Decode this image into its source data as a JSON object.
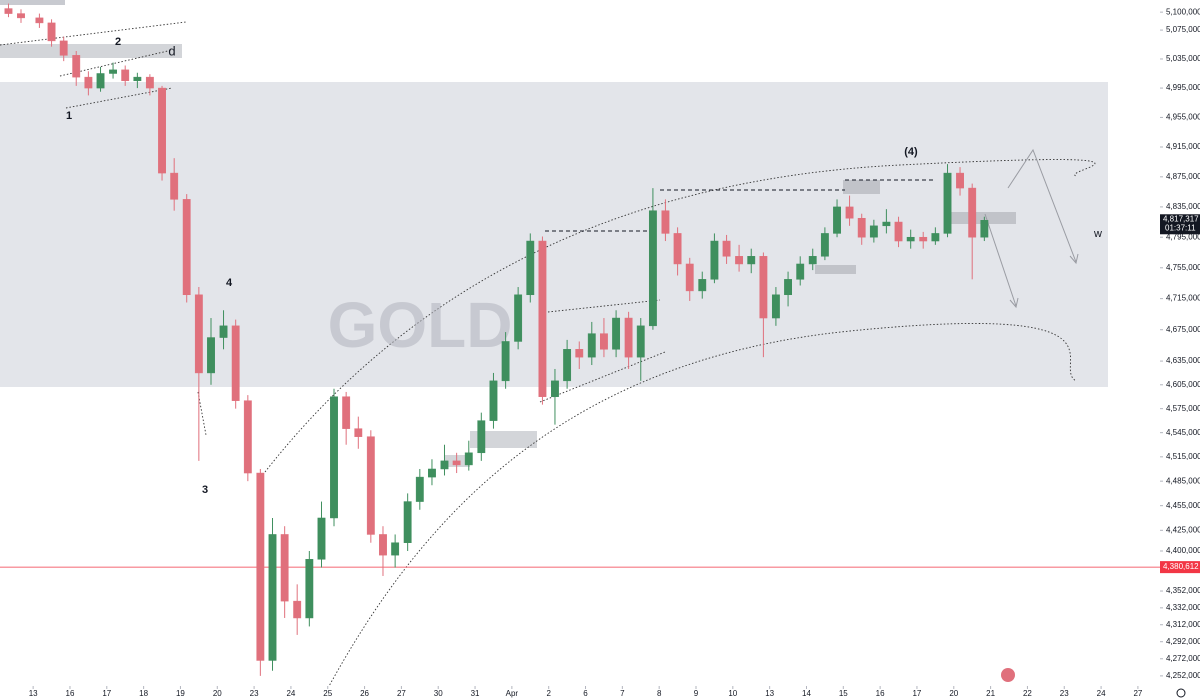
{
  "chart_data": {
    "type": "candlestick",
    "watermark": "GOLD",
    "log": true,
    "up_color": "#3f8f5e",
    "down_color": "#e0707c",
    "xlim": [
      -0.9,
      30.6
    ],
    "xticks": [
      {
        "value": 0,
        "label": "13"
      },
      {
        "value": 1,
        "label": "16"
      },
      {
        "value": 2,
        "label": "17"
      },
      {
        "value": 3,
        "label": "18"
      },
      {
        "value": 4,
        "label": "19"
      },
      {
        "value": 5,
        "label": "20"
      },
      {
        "value": 6,
        "label": "23"
      },
      {
        "value": 7,
        "label": "24"
      },
      {
        "value": 8,
        "label": "25"
      },
      {
        "value": 9,
        "label": "26"
      },
      {
        "value": 10,
        "label": "27"
      },
      {
        "value": 11,
        "label": "30"
      },
      {
        "value": 12,
        "label": "31"
      },
      {
        "value": 13,
        "label": "Apr"
      },
      {
        "value": 14,
        "label": "2"
      },
      {
        "value": 15,
        "label": "6"
      },
      {
        "value": 16,
        "label": "7"
      },
      {
        "value": 17,
        "label": "8"
      },
      {
        "value": 18,
        "label": "9"
      },
      {
        "value": 19,
        "label": "10"
      },
      {
        "value": 20,
        "label": "13"
      },
      {
        "value": 21,
        "label": "14"
      },
      {
        "value": 22,
        "label": "15"
      },
      {
        "value": 23,
        "label": "16"
      },
      {
        "value": 24,
        "label": "17"
      },
      {
        "value": 25,
        "label": "20"
      },
      {
        "value": 26,
        "label": "21"
      },
      {
        "value": 27,
        "label": "22"
      },
      {
        "value": 28,
        "label": "23"
      },
      {
        "value": 29,
        "label": "24"
      },
      {
        "value": 30,
        "label": "27"
      }
    ],
    "ylim": [
      4224000,
      5117000
    ],
    "yticks": [
      {
        "value": 5100000,
        "label": "5,100,000"
      },
      {
        "value": 5075000,
        "label": "5,075,000"
      },
      {
        "value": 5035000,
        "label": "5,035,000"
      },
      {
        "value": 4995000,
        "label": "4,995,000"
      },
      {
        "value": 4955000,
        "label": "4,955,000"
      },
      {
        "value": 4915000,
        "label": "4,915,000"
      },
      {
        "value": 4875000,
        "label": "4,875,000"
      },
      {
        "value": 4835000,
        "label": "4,835,000"
      },
      {
        "value": 4795000,
        "label": "4,795,000"
      },
      {
        "value": 4755000,
        "label": "4,755,000"
      },
      {
        "value": 4715000,
        "label": "4,715,000"
      },
      {
        "value": 4675000,
        "label": "4,675,000"
      },
      {
        "value": 4635000,
        "label": "4,635,000"
      },
      {
        "value": 4605000,
        "label": "4,605,000"
      },
      {
        "value": 4575000,
        "label": "4,575,000"
      },
      {
        "value": 4545000,
        "label": "4,545,000"
      },
      {
        "value": 4515000,
        "label": "4,515,000"
      },
      {
        "value": 4485000,
        "label": "4,485,000"
      },
      {
        "value": 4455000,
        "label": "4,455,000"
      },
      {
        "value": 4425000,
        "label": "4,425,000"
      },
      {
        "value": 4400000,
        "label": "4,400,000"
      },
      {
        "value": 4352000,
        "label": "4,352,000"
      },
      {
        "value": 4332000,
        "label": "4,332,000"
      },
      {
        "value": 4312000,
        "label": "4,312,000"
      },
      {
        "value": 4292000,
        "label": "4,292,000"
      },
      {
        "value": 4272000,
        "label": "4,272,000"
      },
      {
        "value": 4252000,
        "label": "4,252,000"
      }
    ],
    "current_price": {
      "value": 4817317,
      "label": "4,817,317"
    },
    "countdown": "01:37:11",
    "level_line": {
      "value": 4380612,
      "label": "4,380,612",
      "color": "#f23645"
    },
    "annotations": [
      "2",
      "d",
      "1",
      "4",
      "3",
      "(4)",
      "w"
    ],
    "x": [
      -0.67,
      -0.33,
      0.17,
      0.5,
      0.83,
      1.17,
      1.5,
      1.83,
      2.17,
      2.5,
      2.83,
      3.17,
      3.5,
      3.83,
      4.17,
      4.5,
      4.83,
      5.17,
      5.5,
      5.83,
      6.17,
      6.5,
      6.83,
      7.17,
      7.5,
      7.83,
      8.17,
      8.5,
      8.83,
      9.17,
      9.5,
      9.83,
      10.17,
      10.5,
      10.83,
      11.17,
      11.5,
      11.83,
      12.17,
      12.5,
      12.83,
      13.17,
      13.5,
      13.83,
      14.17,
      14.5,
      14.83,
      15.17,
      15.5,
      15.83,
      16.17,
      16.5,
      16.83,
      17.17,
      17.5,
      17.83,
      18.17,
      18.5,
      18.83,
      19.17,
      19.5,
      19.83,
      20.17,
      20.5,
      20.83,
      21.17,
      21.5,
      21.83,
      22.17,
      22.5,
      22.83,
      23.17,
      23.5,
      23.83,
      24.17,
      24.5,
      24.83,
      25.17,
      25.5,
      25.83
    ],
    "open": [
      5105000,
      5098000,
      5092000,
      5085000,
      5060000,
      5040000,
      5010000,
      4995000,
      5015000,
      5020000,
      5005000,
      5010000,
      4995000,
      4880000,
      4845000,
      4720000,
      4620000,
      4665000,
      4680000,
      4585000,
      4495000,
      4270000,
      4420000,
      4340000,
      4320000,
      4390000,
      4440000,
      4590000,
      4550000,
      4540000,
      4420000,
      4395000,
      4410000,
      4460000,
      4490000,
      4500000,
      4510000,
      4505000,
      4520000,
      4560000,
      4610000,
      4660000,
      4720000,
      4790000,
      4590000,
      4610000,
      4650000,
      4640000,
      4670000,
      4650000,
      4690000,
      4640000,
      4680000,
      4830000,
      4800000,
      4760000,
      4725000,
      4740000,
      4790000,
      4770000,
      4760000,
      4770000,
      4690000,
      4720000,
      4740000,
      4760000,
      4770000,
      4800000,
      4835000,
      4820000,
      4795000,
      4810000,
      4815000,
      4790000,
      4795000,
      4790000,
      4800000,
      4880000,
      4860000,
      4795000
    ],
    "high": [
      5112000,
      5104000,
      5098000,
      5090000,
      5066000,
      5046000,
      5018000,
      5024000,
      5030000,
      5026000,
      5016000,
      5014000,
      4998000,
      4900000,
      4852000,
      4730000,
      4690000,
      4700000,
      4688000,
      4592000,
      4500000,
      4440000,
      4430000,
      4360000,
      4400000,
      4460000,
      4600000,
      4596000,
      4565000,
      4548000,
      4430000,
      4420000,
      4470000,
      4500000,
      4512000,
      4530000,
      4520000,
      4535000,
      4570000,
      4620000,
      4672000,
      4730000,
      4800000,
      4796000,
      4625000,
      4662000,
      4660000,
      4685000,
      4690000,
      4700000,
      4698000,
      4690000,
      4860000,
      4845000,
      4808000,
      4768000,
      4750000,
      4800000,
      4798000,
      4785000,
      4780000,
      4775000,
      4730000,
      4750000,
      4770000,
      4780000,
      4808000,
      4845000,
      4850000,
      4826000,
      4818000,
      4832000,
      4822000,
      4805000,
      4802000,
      4808000,
      4892000,
      4888000,
      4866000,
      4822000
    ],
    "low": [
      5093000,
      5085000,
      5078000,
      5052000,
      5032000,
      4998000,
      4985000,
      4990000,
      5008000,
      4998000,
      4995000,
      4985000,
      4870000,
      4830000,
      4710000,
      4510000,
      4605000,
      4650000,
      4575000,
      4485000,
      4252000,
      4258000,
      4320000,
      4300000,
      4310000,
      4380000,
      4430000,
      4530000,
      4525000,
      4410000,
      4370000,
      4380000,
      4400000,
      4450000,
      4480000,
      4492000,
      4495000,
      4498000,
      4510000,
      4550000,
      4600000,
      4650000,
      4710000,
      4580000,
      4555000,
      4600000,
      4625000,
      4630000,
      4640000,
      4640000,
      4625000,
      4610000,
      4675000,
      4790000,
      4745000,
      4712000,
      4715000,
      4735000,
      4760000,
      4750000,
      4748000,
      4640000,
      4680000,
      4705000,
      4732000,
      4752000,
      4765000,
      4795000,
      4810000,
      4785000,
      4788000,
      4800000,
      4782000,
      4780000,
      4780000,
      4785000,
      4795000,
      4850000,
      4740000,
      4790000
    ],
    "close": [
      5098000,
      5092000,
      5085000,
      5060000,
      5040000,
      5010000,
      4995000,
      5015000,
      5020000,
      5005000,
      5010000,
      4995000,
      4880000,
      4845000,
      4720000,
      4620000,
      4665000,
      4680000,
      4585000,
      4495000,
      4270000,
      4420000,
      4340000,
      4320000,
      4390000,
      4440000,
      4590000,
      4550000,
      4540000,
      4420000,
      4395000,
      4410000,
      4460000,
      4490000,
      4500000,
      4510000,
      4505000,
      4520000,
      4560000,
      4610000,
      4660000,
      4720000,
      4790000,
      4590000,
      4610000,
      4650000,
      4640000,
      4670000,
      4650000,
      4690000,
      4640000,
      4680000,
      4830000,
      4800000,
      4760000,
      4725000,
      4740000,
      4790000,
      4770000,
      4760000,
      4770000,
      4690000,
      4720000,
      4740000,
      4760000,
      4770000,
      4800000,
      4835000,
      4820000,
      4795000,
      4810000,
      4815000,
      4790000,
      4795000,
      4790000,
      4800000,
      4880000,
      4860000,
      4795000,
      4817317
    ]
  }
}
